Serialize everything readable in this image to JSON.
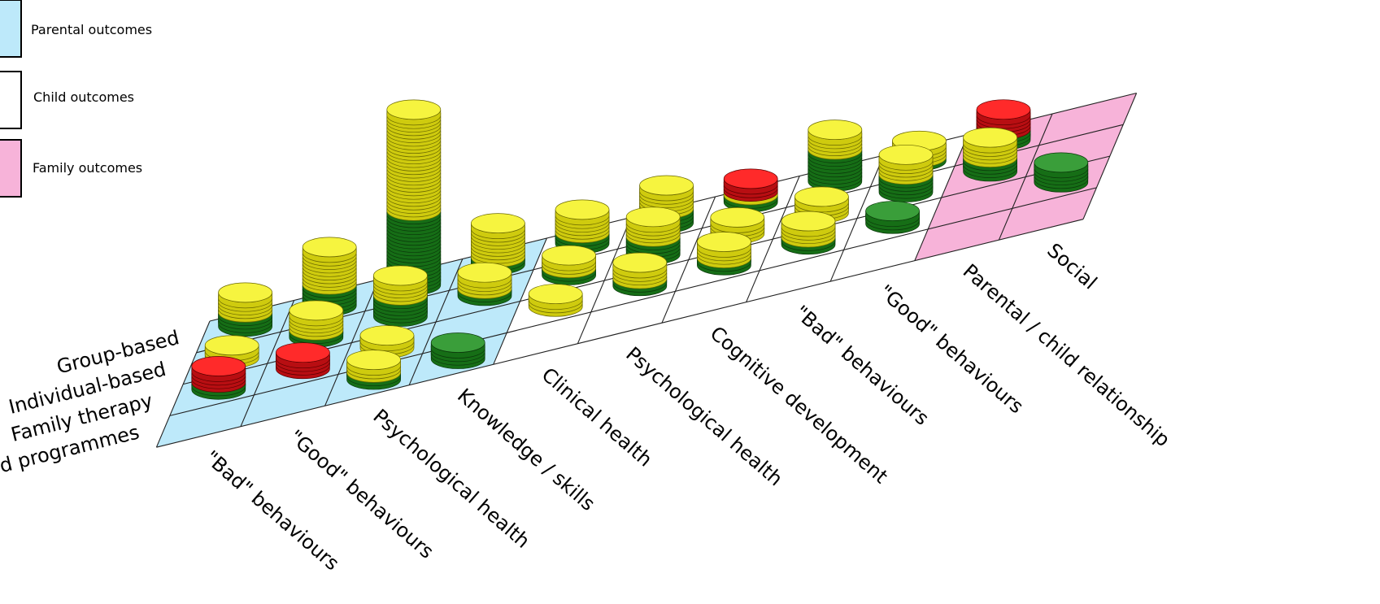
{
  "legend": {
    "items": [
      {
        "label": "Parental outcomes",
        "color": "#bde9fa"
      },
      {
        "label": "Child outcomes",
        "color": "#ffffff"
      },
      {
        "label": "Family outcomes",
        "color": "#f7b3d9"
      }
    ]
  },
  "chart_data": {
    "type": "heatmap",
    "title": "",
    "xlabel": "",
    "ylabel": "",
    "rows": [
      "Group-based",
      "Individual-based",
      "Family therapy",
      "Not specified / mixed programmes"
    ],
    "columns": [
      "\"Bad\" behaviours",
      "\"Good\" behaviours",
      "Psychological health",
      "Knowledge / skills",
      "Clinical health",
      "Psychological health",
      "Cognitive development",
      "\"Bad\" behaviours",
      "\"Good\" behaviours",
      "Parental / child relationship",
      "Social"
    ],
    "column_groups": [
      {
        "label": "Parental outcomes",
        "start": 0,
        "end": 3
      },
      {
        "label": "Child outcomes",
        "start": 4,
        "end": 8
      },
      {
        "label": "Family outcomes",
        "start": 9,
        "end": 10
      }
    ],
    "disc_colors": {
      "green": "#1f8a1f",
      "yellow": "#f2ee24",
      "red": "#e8141a"
    },
    "stacks": [
      {
        "row": 0,
        "col": 0,
        "green": 4,
        "yellow": 5,
        "red": 0
      },
      {
        "row": 0,
        "col": 1,
        "green": 6,
        "yellow": 10,
        "red": 0
      },
      {
        "row": 0,
        "col": 2,
        "green": 21,
        "yellow": 28,
        "red": 0
      },
      {
        "row": 0,
        "col": 3,
        "green": 2,
        "yellow": 9,
        "red": 0
      },
      {
        "row": 0,
        "col": 4,
        "green": 3,
        "yellow": 6,
        "red": 0
      },
      {
        "row": 0,
        "col": 5,
        "green": 4,
        "yellow": 6,
        "red": 0
      },
      {
        "row": 0,
        "col": 6,
        "green": 2,
        "yellow": 1,
        "red": 3
      },
      {
        "row": 0,
        "col": 7,
        "green": 9,
        "yellow": 5,
        "red": 0
      },
      {
        "row": 0,
        "col": 8,
        "green": 1,
        "yellow": 4,
        "red": 0
      },
      {
        "row": 0,
        "col": 9,
        "green": 3,
        "yellow": 0,
        "red": 5
      },
      {
        "row": 0,
        "col": 10,
        "green": 0,
        "yellow": 0,
        "red": 0
      },
      {
        "row": 1,
        "col": 0,
        "green": 0,
        "yellow": 3,
        "red": 0
      },
      {
        "row": 1,
        "col": 1,
        "green": 2,
        "yellow": 5,
        "red": 0
      },
      {
        "row": 1,
        "col": 2,
        "green": 6,
        "yellow": 5,
        "red": 0
      },
      {
        "row": 1,
        "col": 3,
        "green": 2,
        "yellow": 4,
        "red": 0
      },
      {
        "row": 1,
        "col": 4,
        "green": 2,
        "yellow": 3,
        "red": 0
      },
      {
        "row": 1,
        "col": 5,
        "green": 5,
        "yellow": 5,
        "red": 0
      },
      {
        "row": 1,
        "col": 6,
        "green": 0,
        "yellow": 4,
        "red": 0
      },
      {
        "row": 1,
        "col": 7,
        "green": 0,
        "yellow": 4,
        "red": 0
      },
      {
        "row": 1,
        "col": 8,
        "green": 5,
        "yellow": 5,
        "red": 0
      },
      {
        "row": 1,
        "col": 9,
        "green": 4,
        "yellow": 5,
        "red": 0
      },
      {
        "row": 1,
        "col": 10,
        "green": 0,
        "yellow": 0,
        "red": 0
      },
      {
        "row": 2,
        "col": 0,
        "green": 2,
        "yellow": 0,
        "red": 4
      },
      {
        "row": 2,
        "col": 1,
        "green": 0,
        "yellow": 0,
        "red": 4
      },
      {
        "row": 2,
        "col": 2,
        "green": 0,
        "yellow": 3,
        "red": 0
      },
      {
        "row": 2,
        "col": 3,
        "green": 0,
        "yellow": 0,
        "red": 0
      },
      {
        "row": 2,
        "col": 4,
        "green": 0,
        "yellow": 3,
        "red": 0
      },
      {
        "row": 2,
        "col": 5,
        "green": 2,
        "yellow": 4,
        "red": 0
      },
      {
        "row": 2,
        "col": 6,
        "green": 2,
        "yellow": 4,
        "red": 0
      },
      {
        "row": 2,
        "col": 7,
        "green": 2,
        "yellow": 4,
        "red": 0
      },
      {
        "row": 2,
        "col": 8,
        "green": 3,
        "yellow": 0,
        "red": 0
      },
      {
        "row": 2,
        "col": 9,
        "green": 0,
        "yellow": 0,
        "red": 0
      },
      {
        "row": 2,
        "col": 10,
        "green": 5,
        "yellow": 0,
        "red": 0
      },
      {
        "row": 3,
        "col": 0,
        "green": 0,
        "yellow": 0,
        "red": 0
      },
      {
        "row": 3,
        "col": 1,
        "green": 0,
        "yellow": 0,
        "red": 0
      },
      {
        "row": 3,
        "col": 2,
        "green": 2,
        "yellow": 3,
        "red": 0
      },
      {
        "row": 3,
        "col": 3,
        "green": 4,
        "yellow": 0,
        "red": 0
      },
      {
        "row": 3,
        "col": 4,
        "green": 0,
        "yellow": 0,
        "red": 0
      },
      {
        "row": 3,
        "col": 5,
        "green": 0,
        "yellow": 0,
        "red": 0
      },
      {
        "row": 3,
        "col": 6,
        "green": 0,
        "yellow": 0,
        "red": 0
      },
      {
        "row": 3,
        "col": 7,
        "green": 0,
        "yellow": 0,
        "red": 0
      },
      {
        "row": 3,
        "col": 8,
        "green": 0,
        "yellow": 0,
        "red": 0
      },
      {
        "row": 3,
        "col": 9,
        "green": 0,
        "yellow": 0,
        "red": 0
      },
      {
        "row": 3,
        "col": 10,
        "green": 0,
        "yellow": 0,
        "red": 0
      }
    ]
  }
}
